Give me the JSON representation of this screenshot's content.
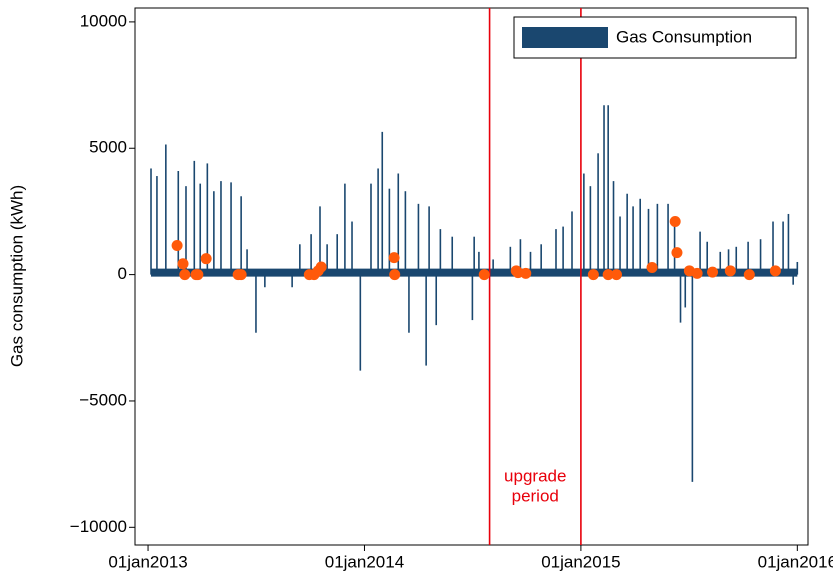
{
  "chart_data": {
    "type": "spike",
    "y_label": "Gas consumption (kWh)",
    "xlim": [
      "2012-12-10",
      "2016-01-19"
    ],
    "xticks": [
      {
        "value": "2013-01-01",
        "label": "01jan2013"
      },
      {
        "value": "2014-01-01",
        "label": "01jan2014"
      },
      {
        "value": "2015-01-01",
        "label": "01jan2015"
      },
      {
        "value": "2016-01-01",
        "label": "01jan2016"
      }
    ],
    "ylim": [
      -10700,
      10550
    ],
    "yticks": [
      10000,
      5000,
      0,
      {
        "value": -5000,
        "label": "−5000"
      },
      {
        "value": -10000,
        "label": "−10000"
      }
    ],
    "legend": "top-right",
    "series": [
      {
        "name": "Gas Consumption",
        "color": "#1a476f",
        "x": [
          "2013-01-06",
          "2013-01-16",
          "2013-01-31",
          "2013-02-21",
          "2013-03-06",
          "2013-03-20",
          "2013-03-30",
          "2013-04-11",
          "2013-04-22",
          "2013-05-04",
          "2013-05-21",
          "2013-06-07",
          "2013-06-17",
          "2013-07-02",
          "2013-07-17",
          "2013-09-01",
          "2013-09-14",
          "2013-10-03",
          "2013-10-18",
          "2013-10-30",
          "2013-11-16",
          "2013-11-29",
          "2013-12-11",
          "2013-12-25",
          "2014-01-12",
          "2014-01-24",
          "2014-01-31",
          "2014-02-12",
          "2014-02-27",
          "2014-03-11",
          "2014-03-17",
          "2014-04-02",
          "2014-04-15",
          "2014-04-20",
          "2014-05-02",
          "2014-05-09",
          "2014-05-29",
          "2014-07-02",
          "2014-07-05",
          "2014-07-13",
          "2014-08-06",
          "2014-09-04",
          "2014-09-21",
          "2014-10-08",
          "2014-10-26",
          "2014-11-20",
          "2014-12-02",
          "2014-12-17",
          "2015-01-06",
          "2015-01-17",
          "2015-01-30",
          "2015-02-09",
          "2015-02-16",
          "2015-02-25",
          "2015-03-08",
          "2015-03-20",
          "2015-03-30",
          "2015-04-11",
          "2015-04-25",
          "2015-05-10",
          "2015-05-28",
          "2015-06-08",
          "2015-06-18",
          "2015-06-26",
          "2015-07-08",
          "2015-07-21",
          "2015-08-02",
          "2015-08-24",
          "2015-09-07",
          "2015-09-20",
          "2015-10-10",
          "2015-10-31",
          "2015-11-21",
          "2015-12-08",
          "2015-12-17",
          "2015-12-25",
          "2016-01-01"
        ],
        "values": [
          4200,
          3900,
          5150,
          4100,
          3500,
          4500,
          3600,
          4400,
          3300,
          3700,
          3650,
          3100,
          1000,
          -2300,
          -500,
          -500,
          1200,
          1600,
          2700,
          1200,
          1600,
          3600,
          2100,
          -3800,
          3600,
          4200,
          5650,
          3400,
          4000,
          3300,
          -2300,
          2800,
          -3600,
          2700,
          -2000,
          1800,
          1500,
          -1800,
          1500,
          900,
          600,
          1100,
          1400,
          900,
          1200,
          1800,
          1900,
          2500,
          4000,
          3500,
          4800,
          6700,
          6700,
          3700,
          2300,
          3200,
          2700,
          3000,
          2600,
          2800,
          2800,
          2200,
          -1900,
          -1300,
          -8200,
          1700,
          1300,
          900,
          1000,
          1100,
          1300,
          1400,
          2100,
          2100,
          2400,
          -400,
          500
        ]
      }
    ],
    "markers": {
      "color": "#ff5a0a",
      "x": [
        "2013-02-19",
        "2013-03-01",
        "2013-03-04",
        "2013-03-23",
        "2013-03-26",
        "2013-04-09",
        "2013-06-02",
        "2013-06-07",
        "2013-09-30",
        "2013-10-08",
        "2013-10-15",
        "2013-10-20",
        "2014-02-20",
        "2014-02-21",
        "2014-07-22",
        "2014-09-14",
        "2014-09-17",
        "2014-09-30",
        "2015-01-22",
        "2015-02-16",
        "2015-03-02",
        "2015-05-01",
        "2015-06-09",
        "2015-06-12",
        "2015-07-03",
        "2015-07-16",
        "2015-08-11",
        "2015-09-10",
        "2015-10-12",
        "2015-11-25"
      ],
      "values": [
        1150,
        430,
        0,
        0,
        0,
        630,
        0,
        0,
        0,
        0,
        150,
        300,
        670,
        0,
        0,
        150,
        80,
        50,
        0,
        0,
        0,
        280,
        2100,
        870,
        150,
        50,
        100,
        150,
        0,
        150
      ]
    },
    "vlines": {
      "color": "#e8000b",
      "x": [
        "2014-07-31",
        "2015-01-01"
      ]
    },
    "annotation": [
      "upgrade",
      "period"
    ]
  }
}
